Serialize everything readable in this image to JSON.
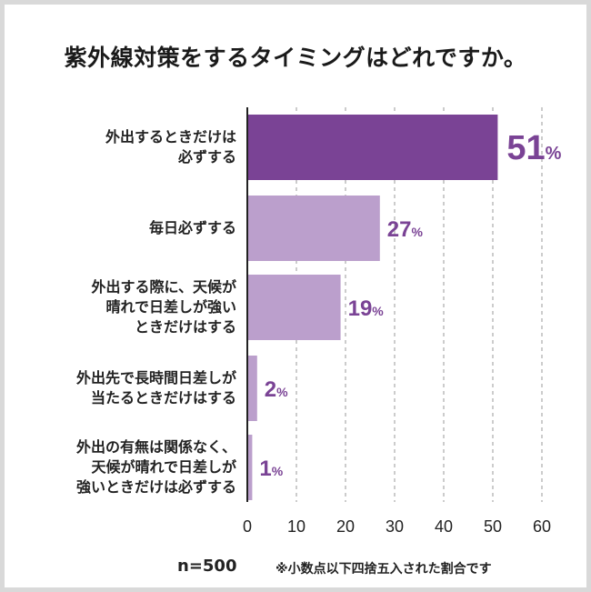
{
  "title": "紫外線対策をするタイミングはどれですか。",
  "footer": {
    "n": "n=500",
    "note": "※小数点以下四捨五入された割合です"
  },
  "colors": {
    "highlight": "#7a4395",
    "bar": "#bb9fcc",
    "value_text": "#7a4395",
    "grid": "#999999"
  },
  "chart_data": {
    "type": "bar",
    "orientation": "horizontal",
    "title": "紫外線対策をするタイミングはどれですか。",
    "categories": [
      [
        "外出するときだけは",
        "必ずする"
      ],
      [
        "毎日必ずする"
      ],
      [
        "外出する際に、天候が",
        "晴れで日差しが強い",
        "ときだけはする"
      ],
      [
        "外出先で長時間日差しが",
        "当たるときだけはする"
      ],
      [
        "外出の有無は関係なく、",
        "天候が晴れで日差しが",
        "強いときだけは必ずする"
      ]
    ],
    "values": [
      51,
      27,
      19,
      2,
      1
    ],
    "value_labels": [
      "51",
      "27",
      "19",
      "2",
      "1"
    ],
    "unit": "%",
    "xlim": [
      0,
      60
    ],
    "xticks": [
      "0",
      "10",
      "20",
      "30",
      "40",
      "50",
      "60"
    ],
    "grid": true
  }
}
